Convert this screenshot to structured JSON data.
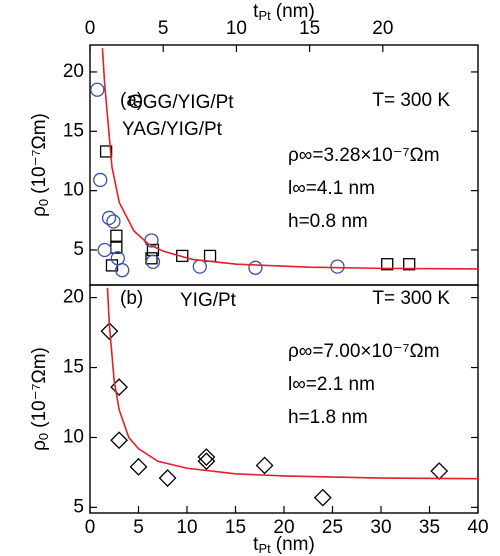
{
  "chart_data": [
    {
      "type": "scatter",
      "panel": "top",
      "x_label": {
        "text": "t",
        "sub": "Pt",
        "unit": "(nm)"
      },
      "y_label": {
        "text": "ρ",
        "sub": "0",
        "unit": "(10⁻⁷Ωm)"
      },
      "xlim": [
        0,
        26.5
      ],
      "xticks": [
        0,
        5,
        10,
        15,
        20
      ],
      "ylim": [
        2.05,
        22.27
      ],
      "yticks": [
        5,
        10,
        15,
        20
      ],
      "series": [
        {
          "name": "GGG/YIG/Pt",
          "color": "#000000",
          "marker": "square",
          "x": [
            1.1,
            1.5,
            1.8,
            1.8,
            4.2,
            4.3,
            6.3,
            8.2,
            20.3,
            21.8
          ],
          "values": [
            13.3,
            3.7,
            6.2,
            5.2,
            4.3,
            5.0,
            4.5,
            4.5,
            3.8,
            3.8
          ]
        },
        {
          "name": "YAG/YIG/Pt",
          "color": "#3a50a8",
          "marker": "circle",
          "x": [
            0.5,
            0.7,
            1.0,
            1.3,
            1.6,
            1.9,
            2.2,
            4.2,
            4.3,
            7.5,
            11.3,
            16.9
          ],
          "values": [
            18.5,
            10.9,
            5.0,
            7.7,
            7.4,
            4.3,
            3.3,
            5.8,
            4.0,
            3.6,
            3.5,
            3.6
          ]
        },
        {
          "color": "#e0202a",
          "marker": "line",
          "x": [
            0.85,
            1,
            1.5,
            2,
            3,
            4,
            5,
            7,
            10,
            15,
            20,
            26.5
          ],
          "values": [
            22,
            19,
            12,
            9,
            6.6,
            5.5,
            4.9,
            4.2,
            3.8,
            3.55,
            3.45,
            3.4
          ]
        }
      ],
      "annotations": [
        {
          "text": "(a)",
          "color": "#000000"
        },
        {
          "text": "T= 300 K",
          "color": "#000000"
        },
        {
          "text": "ρ∞=3.28×10⁻⁷Ωm",
          "color": "#e0202a"
        },
        {
          "text": "l∞=4.1 nm",
          "color": "#e0202a"
        },
        {
          "text": "h=0.8 nm",
          "color": "#e0202a"
        }
      ]
    },
    {
      "type": "scatter",
      "panel": "bottom",
      "x_label": {
        "text": "t",
        "sub": "Pt",
        "unit": "(nm)"
      },
      "y_label": {
        "text": "ρ",
        "sub": "0",
        "unit": "(10⁻⁷Ωm)"
      },
      "xlim": [
        0,
        40
      ],
      "xticks": [
        0,
        5,
        10,
        15,
        20,
        25,
        30,
        35,
        40
      ],
      "ylim": [
        4.6,
        20.9
      ],
      "yticks": [
        5,
        10,
        15,
        20
      ],
      "series": [
        {
          "name": "YIG/Pt",
          "color": "#000000",
          "marker": "diamond",
          "x": [
            2,
            3,
            3,
            5,
            8,
            12,
            12,
            18,
            24,
            36
          ],
          "values": [
            17.6,
            13.6,
            9.8,
            7.9,
            7.1,
            8.6,
            8.3,
            8.0,
            5.7,
            7.6
          ]
        },
        {
          "color": "#e0202a",
          "marker": "line",
          "x": [
            1.8,
            2,
            2.5,
            3,
            4,
            5,
            7,
            10,
            15,
            20,
            30,
            40
          ],
          "values": [
            20.7,
            18,
            14,
            12,
            10,
            9.2,
            8.3,
            7.8,
            7.4,
            7.25,
            7.1,
            7.05
          ]
        }
      ],
      "annotations": [
        {
          "text": "(b)",
          "color": "#000000"
        },
        {
          "text": "T= 300 K",
          "color": "#000000"
        },
        {
          "text": "ρ∞=7.00×10⁻⁷Ωm",
          "color": "#e0202a"
        },
        {
          "text": "l∞=2.1 nm",
          "color": "#e0202a"
        },
        {
          "text": "h=1.8 nm",
          "color": "#e0202a"
        }
      ]
    }
  ]
}
